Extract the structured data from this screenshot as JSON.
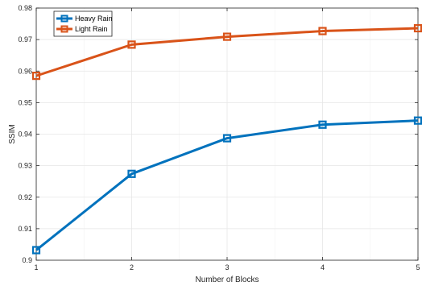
{
  "chart_data": {
    "type": "line",
    "x": [
      1,
      2,
      3,
      4,
      5
    ],
    "series": [
      {
        "name": "Heavy Rain",
        "color": "#0072bd",
        "values": [
          0.9032,
          0.9274,
          0.9387,
          0.943,
          0.9443
        ]
      },
      {
        "name": "Light Rain",
        "color": "#d95319",
        "values": [
          0.9585,
          0.9684,
          0.9709,
          0.9727,
          0.9736
        ]
      }
    ],
    "title": "",
    "xlabel": "Number of Blocks",
    "ylabel": "SSIM",
    "xlim": [
      1,
      5
    ],
    "ylim": [
      0.9,
      0.98
    ],
    "xticks": [
      "1",
      "2",
      "3",
      "4",
      "5"
    ],
    "yticks": [
      "0.9",
      "0.91",
      "0.92",
      "0.93",
      "0.94",
      "0.95",
      "0.96",
      "0.97",
      "0.98"
    ],
    "grid": true,
    "legend_position": "top-left",
    "marker": "square"
  }
}
